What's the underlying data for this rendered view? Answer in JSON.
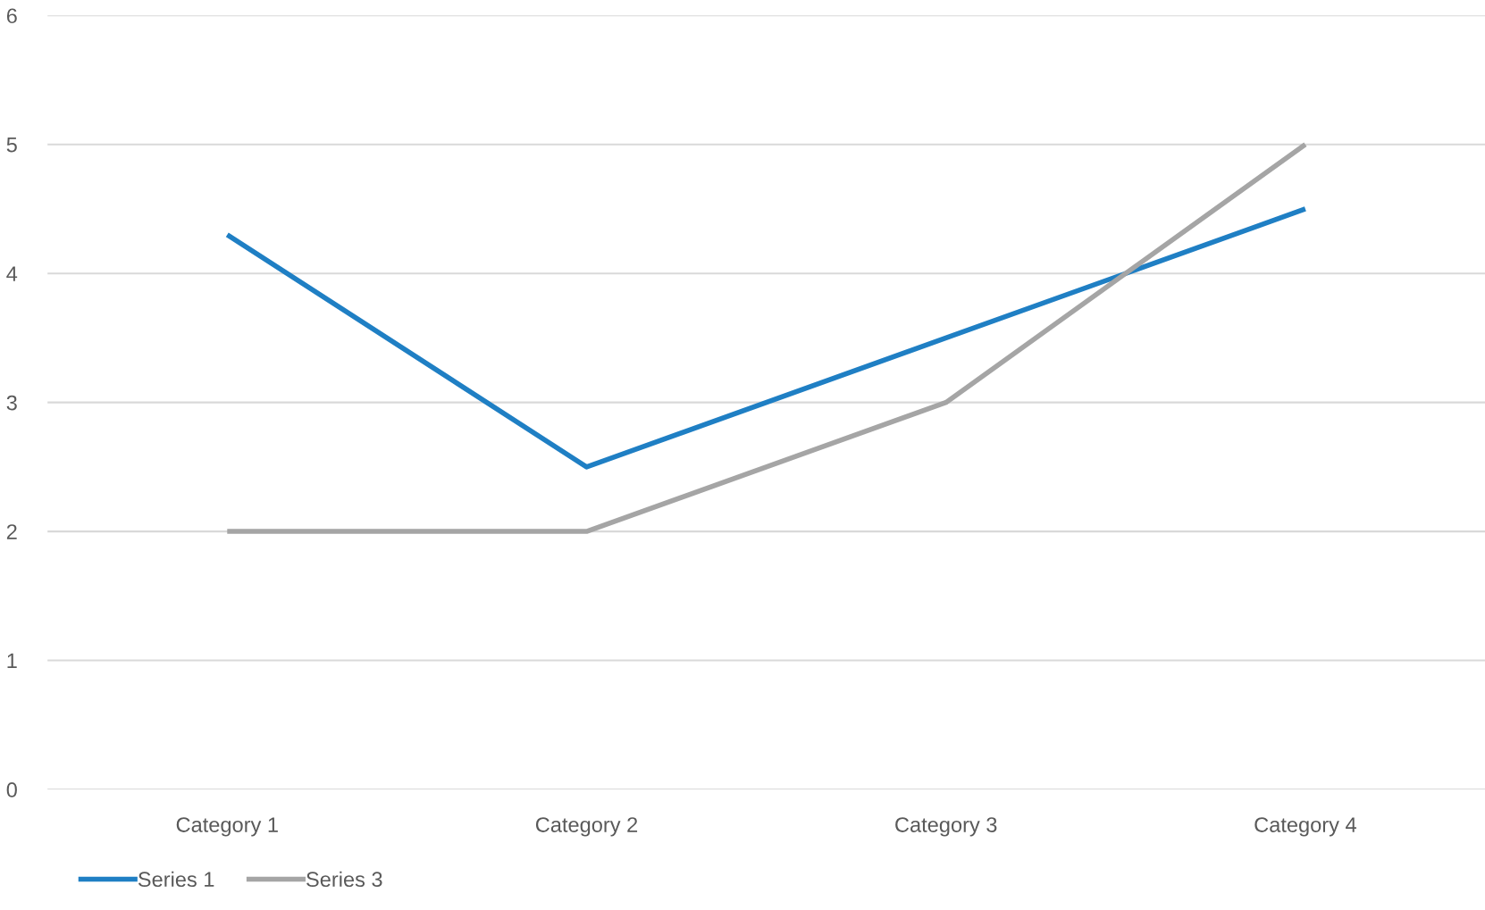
{
  "chart_data": {
    "type": "line",
    "categories": [
      "Category 1",
      "Category 2",
      "Category 3",
      "Category 4"
    ],
    "series": [
      {
        "name": "Series 1",
        "color": "#1f7fc4",
        "values": [
          4.3,
          2.5,
          3.5,
          4.5
        ]
      },
      {
        "name": "Series 3",
        "color": "#a5a5a5",
        "values": [
          2,
          2,
          3,
          5
        ]
      }
    ],
    "ylim": [
      0,
      6
    ],
    "yticks": [
      0,
      1,
      2,
      3,
      4,
      5,
      6
    ],
    "grid": "y",
    "legend": "bottom left",
    "marker": "none",
    "line_style": "solid"
  }
}
